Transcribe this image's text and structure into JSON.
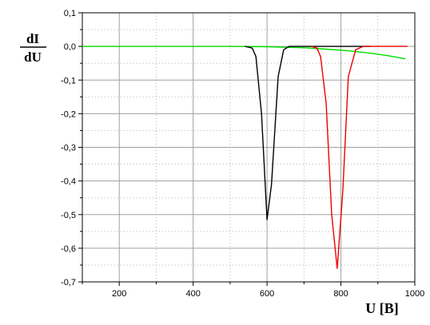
{
  "chart_data": {
    "type": "line",
    "title": "",
    "ylabel_numerator": "dI",
    "ylabel_denominator": "dU",
    "xlabel": "U [B]",
    "xlim": [
      100,
      1000
    ],
    "ylim": [
      -0.7,
      0.1
    ],
    "x_ticks": [
      200,
      400,
      600,
      800,
      1000
    ],
    "x_tick_labels": [
      "200",
      "400",
      "600",
      "800",
      "1000"
    ],
    "y_ticks": [
      0.1,
      0.0,
      -0.1,
      -0.2,
      -0.3,
      -0.4,
      -0.5,
      -0.6,
      -0.7
    ],
    "y_tick_labels": [
      "0,1",
      "0,0",
      "-0,1",
      "-0,2",
      "-0,3",
      "-0,4",
      "-0,5",
      "-0,6",
      "-0,7"
    ],
    "grid": true,
    "series": [
      {
        "color": "#00dd00",
        "points": [
          [
            100,
            0.0
          ],
          [
            500,
            0.0
          ],
          [
            600,
            -0.001
          ],
          [
            700,
            -0.004
          ],
          [
            760,
            -0.008
          ],
          [
            820,
            -0.013
          ],
          [
            880,
            -0.02
          ],
          [
            930,
            -0.028
          ],
          [
            975,
            -0.037
          ]
        ]
      },
      {
        "color": "#000000",
        "points": [
          [
            540,
            0.0
          ],
          [
            560,
            -0.005
          ],
          [
            570,
            -0.03
          ],
          [
            585,
            -0.2
          ],
          [
            600,
            -0.515
          ],
          [
            612,
            -0.41
          ],
          [
            630,
            -0.09
          ],
          [
            645,
            -0.01
          ],
          [
            660,
            0.0
          ],
          [
            880,
            0.0
          ]
        ]
      },
      {
        "color": "#ee0000",
        "points": [
          [
            720,
            0.0
          ],
          [
            735,
            -0.005
          ],
          [
            745,
            -0.03
          ],
          [
            760,
            -0.17
          ],
          [
            775,
            -0.5
          ],
          [
            790,
            -0.66
          ],
          [
            805,
            -0.43
          ],
          [
            820,
            -0.09
          ],
          [
            840,
            -0.01
          ],
          [
            860,
            0.0
          ],
          [
            980,
            0.0
          ]
        ]
      }
    ]
  }
}
